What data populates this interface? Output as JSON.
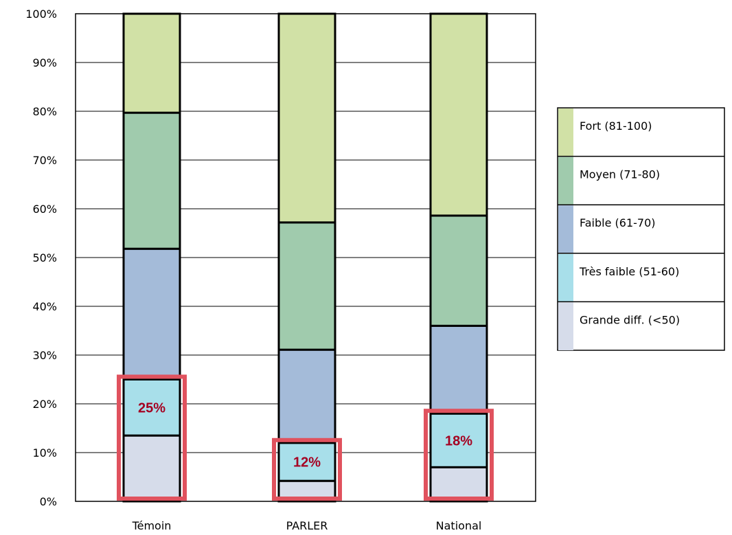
{
  "chart_data": {
    "type": "bar",
    "stacked": true,
    "percent": true,
    "categories": [
      "Témoin",
      "PARLER",
      "National"
    ],
    "y_ticks": [
      "0%",
      "10%",
      "20%",
      "30%",
      "40%",
      "50%",
      "60%",
      "70%",
      "80%",
      "90%",
      "100%"
    ],
    "ylim": [
      0,
      100
    ],
    "grid": "horizontal",
    "legend_position": "right",
    "series": [
      {
        "name": "Grande diff. (<50)",
        "color": "#d6dcea",
        "values": [
          13.5,
          4.2,
          7.0
        ]
      },
      {
        "name": "Très faible (51-60)",
        "color": "#a8dfea",
        "values": [
          11.5,
          7.8,
          11.0
        ]
      },
      {
        "name": "Faible (61-70)",
        "color": "#a4bbd9",
        "values": [
          26.8,
          19.1,
          18.0
        ]
      },
      {
        "name": "Moyen (71-80)",
        "color": "#a0cbad",
        "values": [
          27.9,
          26.1,
          22.6
        ]
      },
      {
        "name": "Fort (81-100)",
        "color": "#d1e1a6",
        "values": [
          20.3,
          42.8,
          41.4
        ]
      }
    ],
    "annotations": [
      {
        "category": "Témoin",
        "text": "25%",
        "value": 25
      },
      {
        "category": "PARLER",
        "text": "12%",
        "value": 12
      },
      {
        "category": "National",
        "text": "18%",
        "value": 18
      }
    ],
    "annotation_box_color": "#e0525e",
    "annotation_text_color": "#a50021"
  }
}
